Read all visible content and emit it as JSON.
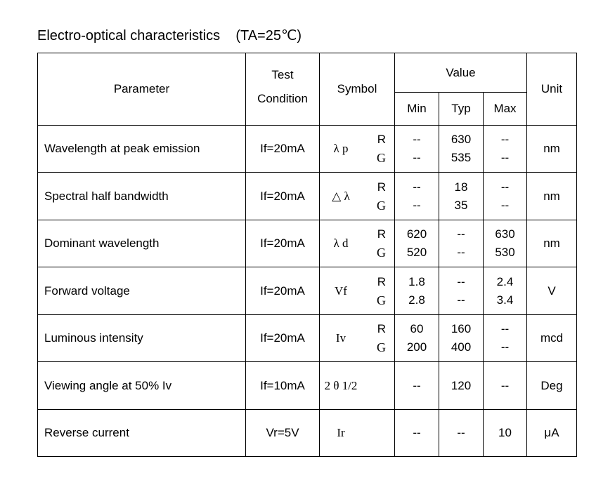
{
  "title": "Electro-optical characteristics    (TA=25℃)",
  "headers": {
    "parameter": "Parameter",
    "test_condition": [
      "Test",
      "Condition"
    ],
    "symbol": "Symbol",
    "value": "Value",
    "min": "Min",
    "typ": "Typ",
    "max": "Max",
    "unit": "Unit"
  },
  "rows": [
    {
      "parameter": "Wavelength at peak emission",
      "condition": "If=20mA",
      "symbol": "λ p",
      "colors": [
        "R",
        "G"
      ],
      "min": [
        "--",
        "--"
      ],
      "typ": [
        "630",
        "535"
      ],
      "max": [
        "--",
        "--"
      ],
      "unit": "nm"
    },
    {
      "parameter": "Spectral half bandwidth",
      "condition": "If=20mA",
      "symbol": "△ λ",
      "colors": [
        "R",
        "G"
      ],
      "min": [
        "--",
        "--"
      ],
      "typ": [
        "18",
        "35"
      ],
      "max": [
        "--",
        "--"
      ],
      "unit": "nm"
    },
    {
      "parameter": "Dominant wavelength",
      "condition": "If=20mA",
      "symbol": "λ d",
      "colors": [
        "R",
        "G"
      ],
      "min": [
        "620",
        "520"
      ],
      "typ": [
        "--",
        "--"
      ],
      "max": [
        "630",
        "530"
      ],
      "unit": "nm"
    },
    {
      "parameter": "Forward voltage",
      "condition": "If=20mA",
      "symbol": "Vf",
      "colors": [
        "R",
        "G"
      ],
      "min": [
        "1.8",
        "2.8"
      ],
      "typ": [
        "--",
        "--"
      ],
      "max": [
        "2.4",
        "3.4"
      ],
      "unit": "V"
    },
    {
      "parameter": "Luminous intensity",
      "condition": "If=20mA",
      "symbol": "Iv",
      "colors": [
        "R",
        "G"
      ],
      "min": [
        "60",
        "200"
      ],
      "typ": [
        "160",
        "400"
      ],
      "max": [
        "--",
        "--"
      ],
      "unit": "mcd"
    },
    {
      "parameter": "Viewing angle at 50% Iv",
      "condition": "If=10mA",
      "symbol": "2 θ 1/2",
      "colors": [],
      "min": [
        "--"
      ],
      "typ": [
        "120"
      ],
      "max": [
        "--"
      ],
      "unit": "Deg"
    },
    {
      "parameter": "Reverse current",
      "condition": "Vr=5V",
      "symbol": "Ir",
      "colors": [],
      "min": [
        "--"
      ],
      "typ": [
        "--"
      ],
      "max": [
        "10"
      ],
      "unit": "μA"
    }
  ]
}
